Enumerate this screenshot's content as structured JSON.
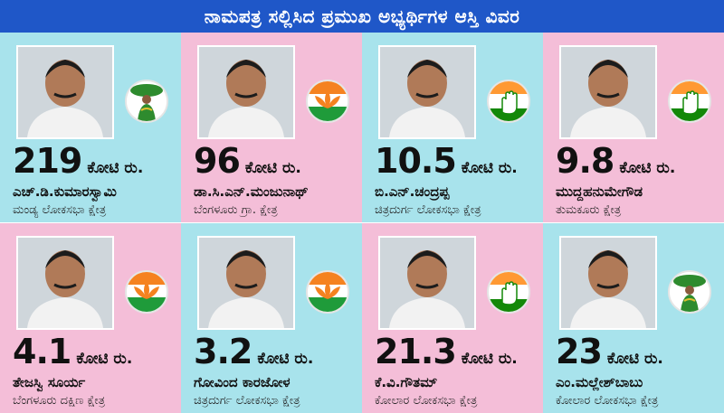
{
  "title": "ನಾಮಪತ್ರ ಸಲ್ಲಿಸಿದ ಪ್ರಮುಖ ಅಭ್ಯರ್ಥಿಗಳ ಆಸ್ತಿ ವಿವರ",
  "colors": {
    "banner": "#1f57c8",
    "cyan_panel": "#a8e3ec",
    "pink_panel": "#f4bed8"
  },
  "candidates": [
    {
      "amount": "219",
      "unit": "ಕೋಟಿ ರು.",
      "name": "ಎಚ್.ಡಿ.ಕುಮಾರಸ್ವಾಮಿ",
      "constituency": "ಮಂಡ್ಯ ಲೋಕಸಭಾ ಕ್ಷೇತ್ರ",
      "party_icon": "jds-farmer-woman-icon",
      "panel": "cyan"
    },
    {
      "amount": "96",
      "unit": "ಕೋಟಿ ರು.",
      "name": "ಡಾ.ಸಿ.ಎನ್.ಮಂಜುನಾಥ್",
      "constituency": "ಬೆಂಗಳೂರು ಗ್ರಾ. ಕ್ಷೇತ್ರ",
      "party_icon": "bjp-lotus-icon",
      "panel": "pink"
    },
    {
      "amount": "10.5",
      "unit": "ಕೋಟಿ ರು.",
      "name": "ಬಿ.ಎನ್.ಚಂದ್ರಪ್ಪ",
      "constituency": "ಚಿತ್ರದುರ್ಗ ಲೋಕಸಭಾ ಕ್ಷೇತ್ರ",
      "party_icon": "congress-hand-icon",
      "panel": "cyan"
    },
    {
      "amount": "9.8",
      "unit": "ಕೋಟಿ ರು.",
      "name": "ಮುದ್ದಹನುಮೇಗೌಡ",
      "constituency": "ತುಮಕೂರು ಕ್ಷೇತ್ರ",
      "party_icon": "congress-hand-icon",
      "panel": "pink"
    },
    {
      "amount": "4.1",
      "unit": "ಕೋಟಿ ರು.",
      "name": "ತೇಜಸ್ವಿ ಸೂರ್ಯ",
      "constituency": "ಬೆಂಗಳೂರು ದಕ್ಷಿಣ ಕ್ಷೇತ್ರ",
      "party_icon": "bjp-lotus-icon",
      "panel": "pink"
    },
    {
      "amount": "3.2",
      "unit": "ಕೋಟಿ ರು.",
      "name": "ಗೋವಿಂದ ಕಾರಜೋಳ",
      "constituency": "ಚಿತ್ರದುರ್ಗ ಲೋಕಸಭಾ ಕ್ಷೇತ್ರ",
      "party_icon": "bjp-lotus-icon",
      "panel": "cyan"
    },
    {
      "amount": "21.3",
      "unit": "ಕೋಟಿ ರು.",
      "name": "ಕೆ.ವಿ.ಗೌತಮ್",
      "constituency": "ಕೋಲಾರ ಲೋಕಸಭಾ ಕ್ಷೇತ್ರ",
      "party_icon": "congress-hand-icon",
      "panel": "pink"
    },
    {
      "amount": "23",
      "unit": "ಕೋಟಿ ರು.",
      "name": "ಎಂ.ಮಲ್ಲೇಶ್‌ಬಾಬು",
      "constituency": "ಕೋಲಾರ ಲೋಕಸಭಾ ಕ್ಷೇತ್ರ",
      "party_icon": "jds-farmer-woman-icon",
      "panel": "cyan"
    }
  ]
}
